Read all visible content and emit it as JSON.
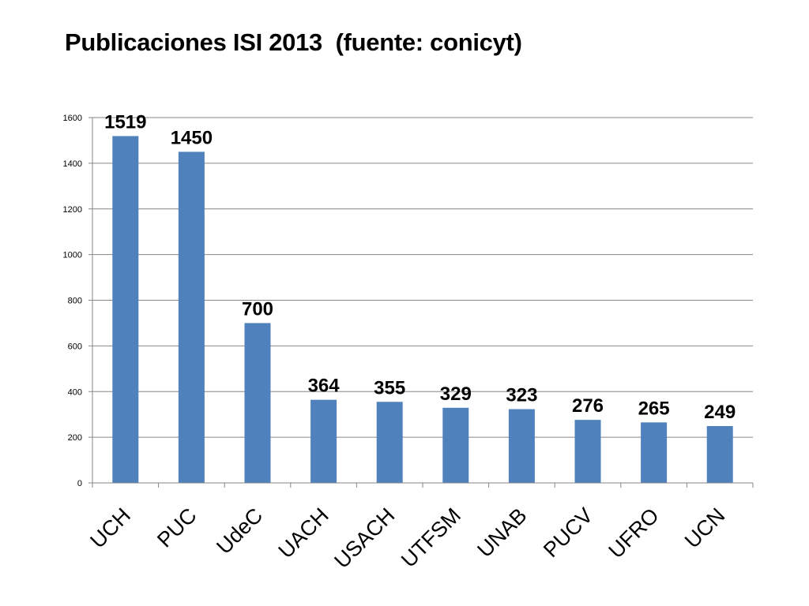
{
  "chart_data": {
    "type": "bar",
    "title": "Publicaciones ISI 2013  (fuente: conicyt)",
    "categories": [
      "UCH",
      "PUC",
      "UdeC",
      "UACH",
      "USACH",
      "UTFSM",
      "UNAB",
      "PUCV",
      "UFRO",
      "UCN"
    ],
    "values": [
      1519,
      1450,
      700,
      364,
      355,
      329,
      323,
      276,
      265,
      249
    ],
    "data_labels": [
      "1519",
      "1450",
      "700",
      "364",
      "355",
      "329",
      "323",
      "276",
      "265",
      "249"
    ],
    "yticks": [
      "0",
      "200",
      "400",
      "600",
      "800",
      "1000",
      "1200",
      "1400",
      "1600"
    ],
    "ylim": [
      0,
      1600
    ],
    "xlabel": "",
    "ylabel": "",
    "grid": true,
    "legend": "none",
    "bar_color": "#4F81BD",
    "grid_color": "#868686"
  }
}
